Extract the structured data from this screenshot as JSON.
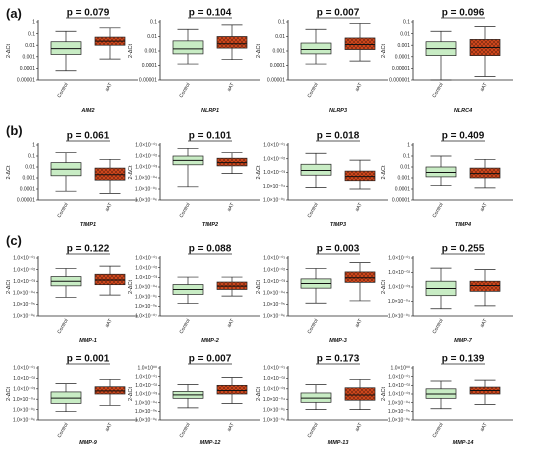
{
  "colors": {
    "control_fill": "#c8ecc4",
    "aat_fill": "#d84a1e",
    "aat_hatch": "#7a2a10",
    "axis": "#222222",
    "bracket": "#222222"
  },
  "sections": [
    {
      "label": "(a)"
    },
    {
      "label": "(b)"
    },
    {
      "label": "(c)"
    }
  ],
  "chart_data": [
    {
      "type": "box",
      "section": "(a)",
      "gene": "AIM2",
      "pvalue_label": "p = 0.079",
      "ylabel": "2-ΔCt",
      "log_scale": true,
      "ylim": [
        1e-05,
        1
      ],
      "y_ticks": [
        "1",
        "0.1",
        "0.01",
        "0.001",
        "0.0001",
        "0.00001"
      ],
      "categories": [
        "Control",
        "aAT"
      ],
      "boxes": [
        {
          "min": -4.2,
          "q1": -2.8,
          "median": -2.3,
          "q3": -1.7,
          "max": -0.8
        },
        {
          "min": -3.2,
          "q1": -2.0,
          "median": -1.65,
          "q3": -1.3,
          "max": -0.5
        }
      ]
    },
    {
      "type": "box",
      "section": "(a)",
      "gene": "NLRP1",
      "pvalue_label": "p = 0.104",
      "ylabel": "2-ΔCt",
      "log_scale": true,
      "ylim": [
        1e-05,
        0.1
      ],
      "y_ticks": [
        "0.1",
        "0.01",
        "0.001",
        "0.0001",
        "0.00001"
      ],
      "categories": [
        "Control",
        "aAT"
      ],
      "boxes": [
        {
          "min": -3.9,
          "q1": -3.2,
          "median": -2.85,
          "q3": -2.3,
          "max": -1.5
        },
        {
          "min": -3.6,
          "q1": -2.8,
          "median": -2.5,
          "q3": -2.0,
          "max": -1.2
        }
      ]
    },
    {
      "type": "box",
      "section": "(a)",
      "gene": "NLRP3",
      "pvalue_label": "p = 0.007",
      "ylabel": "2-ΔCt",
      "log_scale": true,
      "ylim": [
        1e-05,
        0.1
      ],
      "y_ticks": [
        "0.1",
        "0.01",
        "0.001",
        "0.0001",
        "0.00001"
      ],
      "categories": [
        "Control",
        "aAT"
      ],
      "boxes": [
        {
          "min": -3.9,
          "q1": -3.2,
          "median": -2.9,
          "q3": -2.45,
          "max": -1.5
        },
        {
          "min": -3.7,
          "q1": -2.9,
          "median": -2.55,
          "q3": -2.1,
          "max": -1.1
        }
      ]
    },
    {
      "type": "box",
      "section": "(a)",
      "gene": "NLRC4",
      "pvalue_label": "p = 0.096",
      "ylabel": "2-ΔCt",
      "log_scale": true,
      "ylim": [
        1e-06,
        0.1
      ],
      "y_ticks": [
        "0.1",
        "0.01",
        "0.001",
        "0.0001",
        "0.00001",
        "0.000001"
      ],
      "categories": [
        "Control",
        "aAT"
      ],
      "boxes": [
        {
          "min": -6.0,
          "q1": -3.9,
          "median": -3.3,
          "q3": -2.7,
          "max": -1.8
        },
        {
          "min": -5.7,
          "q1": -3.9,
          "median": -3.2,
          "q3": -2.5,
          "max": -1.4
        }
      ]
    },
    {
      "type": "box",
      "section": "(b)",
      "gene": "TIMP1",
      "pvalue_label": "p = 0.061",
      "ylabel": "2-ΔCt",
      "log_scale": true,
      "ylim": [
        1e-05,
        1
      ],
      "y_ticks": [
        "1",
        "0.1",
        "0.01",
        "0.001",
        "0.0001",
        "0.00001"
      ],
      "categories": [
        "Control",
        "aAT"
      ],
      "boxes": [
        {
          "min": -4.2,
          "q1": -2.8,
          "median": -2.2,
          "q3": -1.6,
          "max": -0.7
        },
        {
          "min": -4.4,
          "q1": -3.2,
          "median": -2.7,
          "q3": -2.1,
          "max": -1.3
        }
      ]
    },
    {
      "type": "box",
      "section": "(b)",
      "gene": "TIMP2",
      "pvalue_label": "p = 0.101",
      "ylabel": "2-ΔCt",
      "log_scale": true,
      "ylim": [
        1e-06,
        0.1
      ],
      "y_ticks": [
        "1.0×10⁻⁰¹",
        "1.0×10⁻⁰²",
        "1.0×10⁻⁰³",
        "1.0×10⁻⁰⁴",
        "1.0×10⁻⁰⁵",
        "1.0×10⁻⁰⁶"
      ],
      "categories": [
        "Control",
        "aAT"
      ],
      "boxes": [
        {
          "min": -4.8,
          "q1": -2.8,
          "median": -2.4,
          "q3": -2.0,
          "max": -1.3
        },
        {
          "min": -3.6,
          "q1": -2.9,
          "median": -2.6,
          "q3": -2.2,
          "max": -1.7
        }
      ]
    },
    {
      "type": "box",
      "section": "(b)",
      "gene": "TIMP3",
      "pvalue_label": "p = 0.018",
      "ylabel": "2-ΔCt",
      "log_scale": true,
      "ylim": [
        1e-05,
        0.1
      ],
      "y_ticks": [
        "1.0×10⁻⁰¹",
        "1.0×10⁻⁰²",
        "1.0×10⁻⁰³",
        "1.0×10⁻⁰⁴",
        "1.0×10⁻⁰⁵"
      ],
      "categories": [
        "Control",
        "aAT"
      ],
      "boxes": [
        {
          "min": -4.1,
          "q1": -3.2,
          "median": -2.85,
          "q3": -2.4,
          "max": -1.6
        },
        {
          "min": -4.2,
          "q1": -3.6,
          "median": -3.3,
          "q3": -2.9,
          "max": -2.1
        }
      ]
    },
    {
      "type": "box",
      "section": "(b)",
      "gene": "TIMP4",
      "pvalue_label": "p = 0.409",
      "ylabel": "2-ΔCt",
      "log_scale": true,
      "ylim": [
        1e-05,
        1
      ],
      "y_ticks": [
        "1",
        "0.1",
        "0.01",
        "0.001",
        "0.0001",
        "0.00001"
      ],
      "categories": [
        "Control",
        "aAT"
      ],
      "boxes": [
        {
          "min": -3.7,
          "q1": -2.9,
          "median": -2.5,
          "q3": -2.0,
          "max": -1.0
        },
        {
          "min": -3.9,
          "q1": -3.0,
          "median": -2.6,
          "q3": -2.1,
          "max": -1.3
        }
      ]
    },
    {
      "type": "box",
      "section": "(c)",
      "gene": "MMP-1",
      "pvalue_label": "p = 0.122",
      "ylabel": "2-ΔCt",
      "log_scale": true,
      "ylim": [
        1e-06,
        0.1
      ],
      "y_ticks": [
        "1.0×10⁻⁰¹",
        "1.0×10⁻⁰²",
        "1.0×10⁻⁰³",
        "1.0×10⁻⁰⁴",
        "1.0×10⁻⁰⁵",
        "1.0×10⁻⁰⁶"
      ],
      "categories": [
        "Control",
        "aAT"
      ],
      "boxes": [
        {
          "min": -4.4,
          "q1": -3.4,
          "median": -3.0,
          "q3": -2.6,
          "max": -1.9
        },
        {
          "min": -4.2,
          "q1": -3.3,
          "median": -2.9,
          "q3": -2.4,
          "max": -1.7
        }
      ]
    },
    {
      "type": "box",
      "section": "(c)",
      "gene": "MMP-2",
      "pvalue_label": "p = 0.088",
      "ylabel": "2-ΔCt",
      "log_scale": true,
      "ylim": [
        1e-07,
        1
      ],
      "y_ticks": [
        "1.0×10⁻⁰¹",
        "1.0×10⁻⁰²",
        "1.0×10⁻⁰³",
        "1.0×10⁻⁰⁴",
        "1.0×10⁻⁰⁵",
        "1.0×10⁻⁰⁶",
        "1.0×10⁻⁰⁷"
      ],
      "categories": [
        "Control",
        "aAT"
      ],
      "boxes": [
        {
          "min": -5.5,
          "q1": -4.4,
          "median": -3.8,
          "q3": -3.2,
          "max": -2.3
        },
        {
          "min": -4.6,
          "q1": -3.8,
          "median": -3.4,
          "q3": -2.9,
          "max": -2.3
        }
      ]
    },
    {
      "type": "box",
      "section": "(c)",
      "gene": "MMP-3",
      "pvalue_label": "p = 0.003",
      "ylabel": "2-ΔCt",
      "log_scale": true,
      "ylim": [
        1e-06,
        0.1
      ],
      "y_ticks": [
        "1.0×10⁻⁰¹",
        "1.0×10⁻⁰²",
        "1.0×10⁻⁰³",
        "1.0×10⁻⁰⁴",
        "1.0×10⁻⁰⁵",
        "1.0×10⁻⁰⁶"
      ],
      "categories": [
        "Control",
        "aAT"
      ],
      "boxes": [
        {
          "min": -4.9,
          "q1": -3.6,
          "median": -3.2,
          "q3": -2.8,
          "max": -1.9
        },
        {
          "min": -4.7,
          "q1": -3.1,
          "median": -2.7,
          "q3": -2.2,
          "max": -1.4
        }
      ]
    },
    {
      "type": "box",
      "section": "(c)",
      "gene": "MMP-7",
      "pvalue_label": "p = 0.255",
      "ylabel": "2-ΔCt",
      "log_scale": true,
      "ylim": [
        1e-05,
        0.1
      ],
      "y_ticks": [
        "1.0×10⁻⁰¹",
        "1.0×10⁻⁰²",
        "1.0×10⁻⁰³",
        "1.0×10⁻⁰⁴",
        "1.0×10⁻⁰⁵"
      ],
      "categories": [
        "Control",
        "aAT"
      ],
      "boxes": [
        {
          "min": -4.5,
          "q1": -3.6,
          "median": -3.1,
          "q3": -2.6,
          "max": -1.7
        },
        {
          "min": -4.3,
          "q1": -3.3,
          "median": -2.9,
          "q3": -2.6,
          "max": -1.8
        }
      ]
    },
    {
      "type": "box",
      "section": "(c)",
      "gene": "MMP-9",
      "pvalue_label": "p = 0.001",
      "ylabel": "2-ΔCt",
      "log_scale": true,
      "ylim": [
        1e-06,
        0.1
      ],
      "y_ticks": [
        "1.0×10⁻⁰¹",
        "1.0×10⁻⁰²",
        "1.0×10⁻⁰³",
        "1.0×10⁻⁰⁴",
        "1.0×10⁻⁰⁵",
        "1.0×10⁻⁰⁶"
      ],
      "categories": [
        "Control",
        "aAT"
      ],
      "boxes": [
        {
          "min": -5.2,
          "q1": -4.4,
          "median": -3.9,
          "q3": -3.3,
          "max": -2.5
        },
        {
          "min": -4.6,
          "q1": -3.5,
          "median": -3.2,
          "q3": -2.8,
          "max": -2.1
        }
      ]
    },
    {
      "type": "box",
      "section": "(c)",
      "gene": "MMP-12",
      "pvalue_label": "p = 0.007",
      "ylabel": "2-ΔCt",
      "log_scale": true,
      "ylim": [
        1e-06,
        1
      ],
      "y_ticks": [
        "1.0×10⁰⁰",
        "1.0×10⁻⁰¹",
        "1.0×10⁻⁰²",
        "1.0×10⁻⁰³",
        "1.0×10⁻⁰⁴",
        "1.0×10⁻⁰⁵",
        "1.0×10⁻⁰⁶"
      ],
      "categories": [
        "Control",
        "aAT"
      ],
      "boxes": [
        {
          "min": -4.6,
          "q1": -3.5,
          "median": -3.1,
          "q3": -2.7,
          "max": -1.9
        },
        {
          "min": -4.1,
          "q1": -3.0,
          "median": -2.6,
          "q3": -2.0,
          "max": -1.1
        }
      ]
    },
    {
      "type": "box",
      "section": "(c)",
      "gene": "MMP-13",
      "pvalue_label": "p = 0.173",
      "ylabel": "2-ΔCt",
      "log_scale": true,
      "ylim": [
        1e-06,
        0.1
      ],
      "y_ticks": [
        "1.0×10⁻⁰¹",
        "1.0×10⁻⁰²",
        "1.0×10⁻⁰³",
        "1.0×10⁻⁰⁴",
        "1.0×10⁻⁰⁵",
        "1.0×10⁻⁰⁶"
      ],
      "categories": [
        "Control",
        "aAT"
      ],
      "boxes": [
        {
          "min": -5.0,
          "q1": -4.3,
          "median": -3.9,
          "q3": -3.4,
          "max": -2.6
        },
        {
          "min": -5.0,
          "q1": -4.1,
          "median": -3.6,
          "q3": -2.9,
          "max": -2.1
        }
      ]
    },
    {
      "type": "box",
      "section": "(c)",
      "gene": "MMP-14",
      "pvalue_label": "p = 0.139",
      "ylabel": "2-ΔCt",
      "log_scale": true,
      "ylim": [
        1e-06,
        1
      ],
      "y_ticks": [
        "1.0×10⁰⁰",
        "1.0×10⁻⁰¹",
        "1.0×10⁻⁰²",
        "1.0×10⁻⁰³",
        "1.0×10⁻⁰⁴",
        "1.0×10⁻⁰⁵",
        "1.0×10⁻⁰⁶"
      ],
      "categories": [
        "Control",
        "aAT"
      ],
      "boxes": [
        {
          "min": -4.7,
          "q1": -3.5,
          "median": -3.0,
          "q3": -2.4,
          "max": -1.5
        },
        {
          "min": -4.2,
          "q1": -3.0,
          "median": -2.6,
          "q3": -2.2,
          "max": -1.4
        }
      ]
    }
  ]
}
